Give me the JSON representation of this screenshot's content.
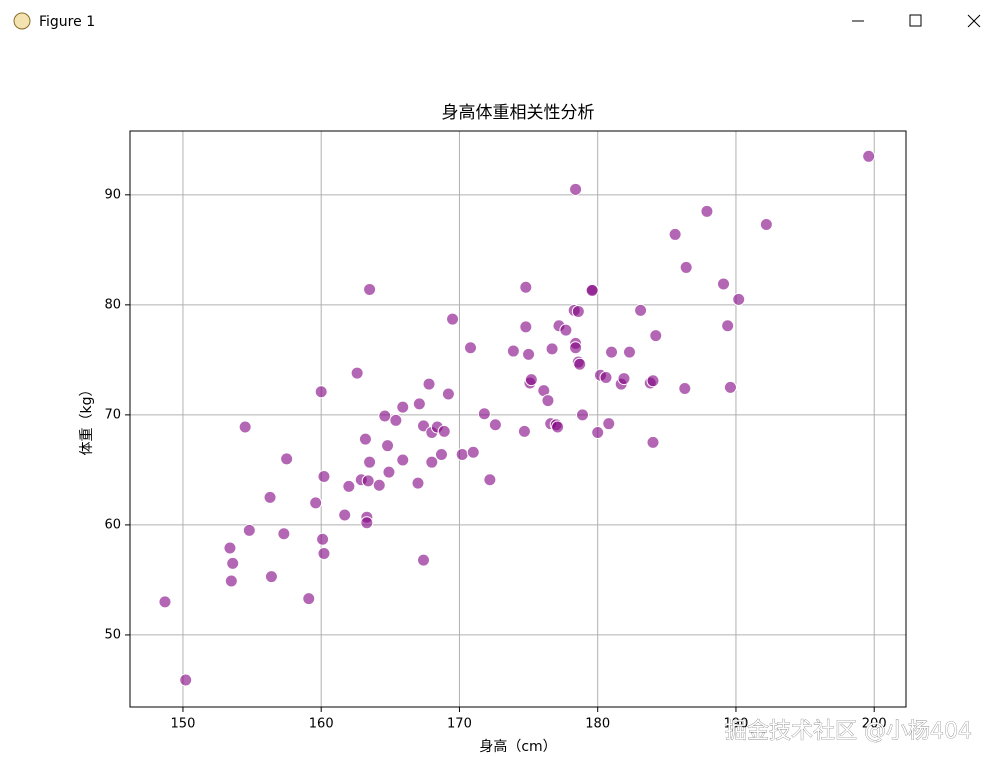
{
  "window": {
    "title": "Figure 1"
  },
  "watermark": "掘金技术社区 @小杨404",
  "chart_data": {
    "type": "scatter",
    "title": "身高体重相关性分析",
    "x_label": "身高（cm）",
    "y_label": "体重（kg）",
    "color": "purple",
    "grid": true,
    "xlim": [
      146.17,
      202.3
    ],
    "ylim": [
      43.45,
      95.8
    ],
    "xticks": [
      150,
      160,
      170,
      180,
      190,
      200
    ],
    "yticks": [
      50,
      60,
      70,
      80,
      90
    ],
    "x": [
      148.7,
      150.2,
      153.4,
      153.6,
      153.5,
      154.5,
      154.8,
      156.3,
      156.4,
      157.3,
      157.5,
      159.1,
      159.6,
      160.0,
      160.1,
      160.2,
      160.2,
      161.7,
      162.0,
      162.6,
      162.9,
      163.2,
      163.3,
      163.3,
      163.4,
      163.5,
      163.5,
      164.2,
      164.6,
      164.8,
      164.9,
      165.4,
      165.9,
      165.9,
      167.0,
      167.1,
      167.4,
      167.4,
      167.8,
      168.0,
      168.0,
      168.4,
      168.7,
      168.9,
      169.2,
      169.5,
      170.2,
      170.8,
      171.0,
      171.8,
      172.2,
      172.6,
      173.9,
      174.7,
      174.8,
      174.8,
      175.0,
      175.1,
      175.2,
      176.1,
      176.4,
      176.6,
      176.7,
      177.0,
      177.1,
      177.2,
      177.7,
      178.3,
      178.4,
      178.4,
      178.4,
      178.6,
      178.6,
      178.7,
      178.9,
      179.6,
      179.6,
      180.0,
      180.2,
      180.6,
      180.8,
      181.0,
      181.7,
      181.9,
      182.3,
      183.1,
      183.8,
      184.0,
      184.0,
      184.2,
      185.6,
      186.4,
      186.3,
      187.9,
      189.1,
      189.4,
      189.6,
      190.2,
      192.2,
      199.6
    ],
    "values": [
      53.0,
      45.9,
      57.9,
      56.5,
      54.9,
      68.9,
      59.5,
      62.5,
      55.3,
      59.2,
      66.0,
      53.3,
      62.0,
      72.1,
      58.7,
      64.4,
      57.4,
      60.9,
      63.5,
      73.8,
      64.1,
      67.8,
      60.7,
      60.2,
      64.0,
      81.4,
      65.7,
      63.6,
      69.9,
      67.2,
      64.8,
      69.5,
      70.7,
      65.9,
      63.8,
      71.0,
      69.0,
      56.8,
      72.8,
      68.4,
      65.7,
      68.9,
      66.4,
      68.5,
      71.9,
      78.7,
      66.4,
      76.1,
      66.6,
      70.1,
      64.1,
      69.1,
      75.8,
      68.5,
      78.0,
      81.6,
      75.5,
      72.9,
      73.2,
      72.2,
      71.3,
      69.2,
      76.0,
      69.1,
      68.9,
      78.1,
      77.7,
      79.5,
      76.5,
      76.1,
      90.5,
      79.4,
      74.8,
      74.6,
      70.0,
      81.4,
      81.3,
      68.4,
      73.6,
      73.4,
      69.2,
      75.7,
      72.8,
      73.3,
      75.7,
      79.5,
      72.9,
      73.1,
      67.5,
      77.2,
      86.4,
      83.4,
      72.4,
      88.5,
      81.9,
      78.1,
      72.5,
      80.5,
      87.3,
      93.5
    ]
  }
}
